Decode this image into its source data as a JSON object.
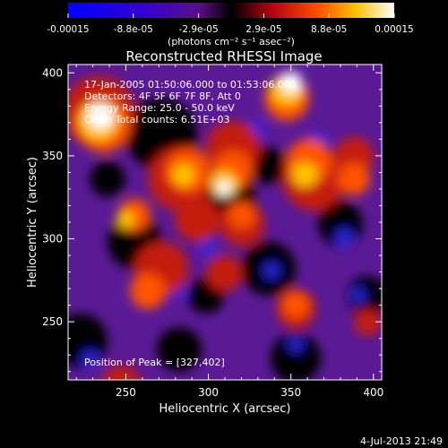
{
  "colorbar": {
    "tick_labels": [
      "-0.00015",
      "-8.8e-05",
      "-2.9e-05",
      "2.9e-05",
      "8.8e-05",
      "0.00015"
    ],
    "unit_label": "(photons cm⁻² s⁻¹ asec⁻²)"
  },
  "chart_data": {
    "type": "heatmap",
    "title": "Reconstructed RHESSI Image",
    "xlabel": "Heliocentric X (arcsec)",
    "ylabel": "Heliocentric Y (arcsec)",
    "xlim": [
      215,
      405
    ],
    "ylim": [
      215,
      405
    ],
    "xticks": [
      250,
      300,
      350,
      400
    ],
    "yticks": [
      250,
      300,
      350,
      400
    ],
    "xtick_labels": [
      "250",
      "300",
      "350",
      "400"
    ],
    "ytick_labels": [
      "250",
      "300",
      "350",
      "400"
    ],
    "colorscale_range": [
      -0.00015,
      0.00015
    ],
    "colors": [
      "#0000ff",
      "#5500cc",
      "#6a2aa8",
      "#000000",
      "#b01010",
      "#ff5a00",
      "#ffc000",
      "#ffffff"
    ],
    "annotations": [
      "17-Jan-2005 01:50:06.000 to 01:53:06.000",
      "Detectors: 4F 5F 6F 7F 8F, Att 0",
      "Energy Range: 25.0 - 50.0 keV",
      "Clean    Total counts: 6.51E+03"
    ],
    "peak_label": "Position of Peak = [327,402]",
    "peak_position": [
      327,
      402
    ]
  },
  "footer": {
    "timestamp": "4-Jul-2013 21:49"
  }
}
